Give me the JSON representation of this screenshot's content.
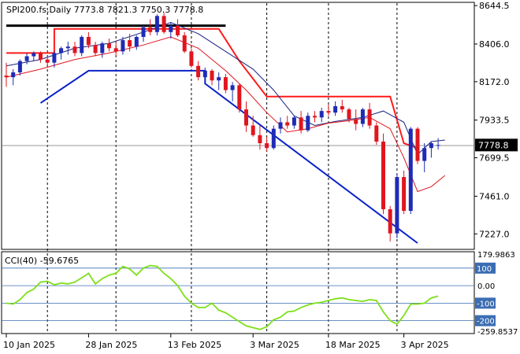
{
  "symbol_line": "SPI200.fs,Daily  7773.8 7821.3 7750.3 7778.8",
  "indicator_label": "CCI(40) -59.6765",
  "colors": {
    "bull": "#1f2bb5",
    "bear": "#e0161f",
    "fast_ma": "#e0161f",
    "slow_ma": "#1a237e",
    "stop_red": "#ff1a1a",
    "stop_blue": "#0b22c8",
    "stop_black": "#000000",
    "cci": "#7ee01a",
    "level": "#3b6db3",
    "grid": "#000000",
    "price_tag_bg": "#000000",
    "price_tag_fg": "#ffffff"
  },
  "chart_data": {
    "type": "candlestick",
    "price_axis_ticks": [
      "8644.5",
      "8406.0",
      "8172.0",
      "7933.5",
      "7699.5",
      "7461.0",
      "7227.0"
    ],
    "current_price": "7778.8",
    "ylim": [
      7165,
      8650
    ],
    "x_labels": [
      {
        "label": "10 Jan 2025",
        "i": 0
      },
      {
        "label": "28 Jan 2025",
        "i": 12
      },
      {
        "label": "13 Feb 2025",
        "i": 24
      },
      {
        "label": "3 Mar 2025",
        "i": 36
      },
      {
        "label": "18 Mar 2025",
        "i": 47
      },
      {
        "label": "3 Apr 2025",
        "i": 58
      }
    ],
    "dividers": [
      6,
      16,
      27,
      38,
      47,
      57
    ],
    "candles": [
      [
        8210,
        8290,
        8140,
        8200
      ],
      [
        8200,
        8250,
        8150,
        8230
      ],
      [
        8230,
        8310,
        8210,
        8300
      ],
      [
        8300,
        8350,
        8280,
        8330
      ],
      [
        8330,
        8360,
        8300,
        8350
      ],
      [
        8350,
        8360,
        8290,
        8310
      ],
      [
        8310,
        8330,
        8270,
        8290
      ],
      [
        8290,
        8360,
        8260,
        8350
      ],
      [
        8350,
        8390,
        8310,
        8380
      ],
      [
        8380,
        8420,
        8340,
        8390
      ],
      [
        8390,
        8420,
        8330,
        8350
      ],
      [
        8350,
        8460,
        8330,
        8450
      ],
      [
        8450,
        8480,
        8380,
        8400
      ],
      [
        8400,
        8420,
        8330,
        8350
      ],
      [
        8350,
        8420,
        8320,
        8410
      ],
      [
        8410,
        8440,
        8360,
        8380
      ],
      [
        8380,
        8420,
        8330,
        8360
      ],
      [
        8360,
        8450,
        8340,
        8430
      ],
      [
        8430,
        8470,
        8360,
        8390
      ],
      [
        8390,
        8460,
        8370,
        8450
      ],
      [
        8450,
        8530,
        8420,
        8510
      ],
      [
        8510,
        8560,
        8460,
        8480
      ],
      [
        8480,
        8590,
        8460,
        8580
      ],
      [
        8580,
        8600,
        8470,
        8480
      ],
      [
        8480,
        8540,
        8440,
        8520
      ],
      [
        8520,
        8560,
        8450,
        8460
      ],
      [
        8460,
        8480,
        8350,
        8360
      ],
      [
        8360,
        8380,
        8260,
        8270
      ],
      [
        8270,
        8300,
        8180,
        8200
      ],
      [
        8200,
        8260,
        8180,
        8240
      ],
      [
        8240,
        8250,
        8150,
        8180
      ],
      [
        8180,
        8230,
        8120,
        8200
      ],
      [
        8200,
        8220,
        8100,
        8120
      ],
      [
        8120,
        8170,
        8050,
        8150
      ],
      [
        8150,
        8160,
        7980,
        8000
      ],
      [
        8000,
        8050,
        7860,
        7900
      ],
      [
        7900,
        7960,
        7830,
        7840
      ],
      [
        7840,
        7900,
        7750,
        7790
      ],
      [
        7790,
        7830,
        7740,
        7760
      ],
      [
        7760,
        7900,
        7750,
        7880
      ],
      [
        7880,
        7950,
        7850,
        7920
      ],
      [
        7920,
        7960,
        7880,
        7900
      ],
      [
        7900,
        7960,
        7880,
        7950
      ],
      [
        7950,
        7990,
        7850,
        7870
      ],
      [
        7870,
        7980,
        7860,
        7960
      ],
      [
        7960,
        7990,
        7920,
        7950
      ],
      [
        7950,
        8010,
        7920,
        7990
      ],
      [
        7990,
        8030,
        7960,
        7980
      ],
      [
        7980,
        8050,
        7960,
        8020
      ],
      [
        8020,
        8060,
        7980,
        8000
      ],
      [
        8000,
        8010,
        7920,
        7940
      ],
      [
        7940,
        8000,
        7870,
        7910
      ],
      [
        7910,
        8010,
        7890,
        8000
      ],
      [
        8000,
        8040,
        7880,
        7900
      ],
      [
        7900,
        7920,
        7780,
        7800
      ],
      [
        7800,
        7850,
        7350,
        7380
      ],
      [
        7380,
        7400,
        7180,
        7230
      ],
      [
        7230,
        7600,
        7200,
        7580
      ],
      [
        7580,
        7620,
        7350,
        7370
      ],
      [
        7370,
        7890,
        7350,
        7880
      ],
      [
        7880,
        7890,
        7660,
        7680
      ],
      [
        7680,
        7790,
        7610,
        7760
      ],
      [
        7760,
        7800,
        7700,
        7790
      ],
      [
        7773.8,
        7821.3,
        7750.3,
        7778.8
      ]
    ],
    "slow_ma": [
      [
        0,
        8270
      ],
      [
        5,
        8310
      ],
      [
        10,
        8380
      ],
      [
        15,
        8410
      ],
      [
        20,
        8480
      ],
      [
        24,
        8540
      ],
      [
        28,
        8470
      ],
      [
        32,
        8360
      ],
      [
        36,
        8250
      ],
      [
        39,
        8120
      ],
      [
        42,
        7960
      ],
      [
        45,
        7900
      ],
      [
        48,
        7925
      ],
      [
        52,
        7950
      ],
      [
        55,
        7990
      ],
      [
        58,
        7920
      ],
      [
        60,
        7720
      ],
      [
        62,
        7800
      ],
      [
        64,
        7810
      ]
    ],
    "fast_ma": [
      [
        0,
        8200
      ],
      [
        5,
        8250
      ],
      [
        10,
        8310
      ],
      [
        15,
        8350
      ],
      [
        20,
        8400
      ],
      [
        24,
        8450
      ],
      [
        28,
        8380
      ],
      [
        32,
        8240
      ],
      [
        35,
        8120
      ],
      [
        38,
        7980
      ],
      [
        41,
        7860
      ],
      [
        44,
        7880
      ],
      [
        47,
        7915
      ],
      [
        50,
        7930
      ],
      [
        53,
        7950
      ],
      [
        56,
        7880
      ],
      [
        58,
        7700
      ],
      [
        60,
        7490
      ],
      [
        62,
        7520
      ],
      [
        64,
        7590
      ]
    ],
    "stop_red": [
      [
        0,
        8350
      ],
      [
        7,
        8350
      ],
      [
        7,
        8500
      ],
      [
        29,
        8500
      ],
      [
        31,
        8500
      ],
      [
        34,
        8300
      ],
      [
        38,
        8080
      ],
      [
        45,
        8080
      ],
      [
        56,
        8080
      ],
      [
        56,
        8080
      ],
      [
        58,
        7790
      ],
      [
        60,
        7760
      ]
    ],
    "stop_blue": [
      [
        5,
        8040
      ],
      [
        12,
        8240
      ],
      [
        29,
        8240
      ],
      [
        29,
        8160
      ],
      [
        60,
        7170
      ]
    ],
    "stop_black": [
      [
        0,
        8520
      ],
      [
        32,
        8520
      ]
    ],
    "cci": {
      "ticks": [
        "179.9863",
        "100",
        "0.00",
        "-100",
        "-200",
        "-259.8537"
      ],
      "ylim": [
        -260,
        180
      ],
      "levels": [
        100,
        0,
        -100,
        -200
      ],
      "values": [
        -100,
        -105,
        -80,
        -40,
        -20,
        20,
        25,
        5,
        15,
        10,
        20,
        45,
        70,
        10,
        40,
        60,
        70,
        110,
        95,
        60,
        100,
        115,
        110,
        70,
        40,
        0,
        -60,
        -100,
        -125,
        -125,
        -100,
        -140,
        -155,
        -180,
        -205,
        -230,
        -240,
        -250,
        -235,
        -195,
        -180,
        -150,
        -145,
        -125,
        -110,
        -100,
        -95,
        -85,
        -75,
        -70,
        -80,
        -85,
        -90,
        -80,
        -85,
        -150,
        -200,
        -220,
        -170,
        -105,
        -105,
        -100,
        -70,
        -59.6765
      ]
    }
  }
}
